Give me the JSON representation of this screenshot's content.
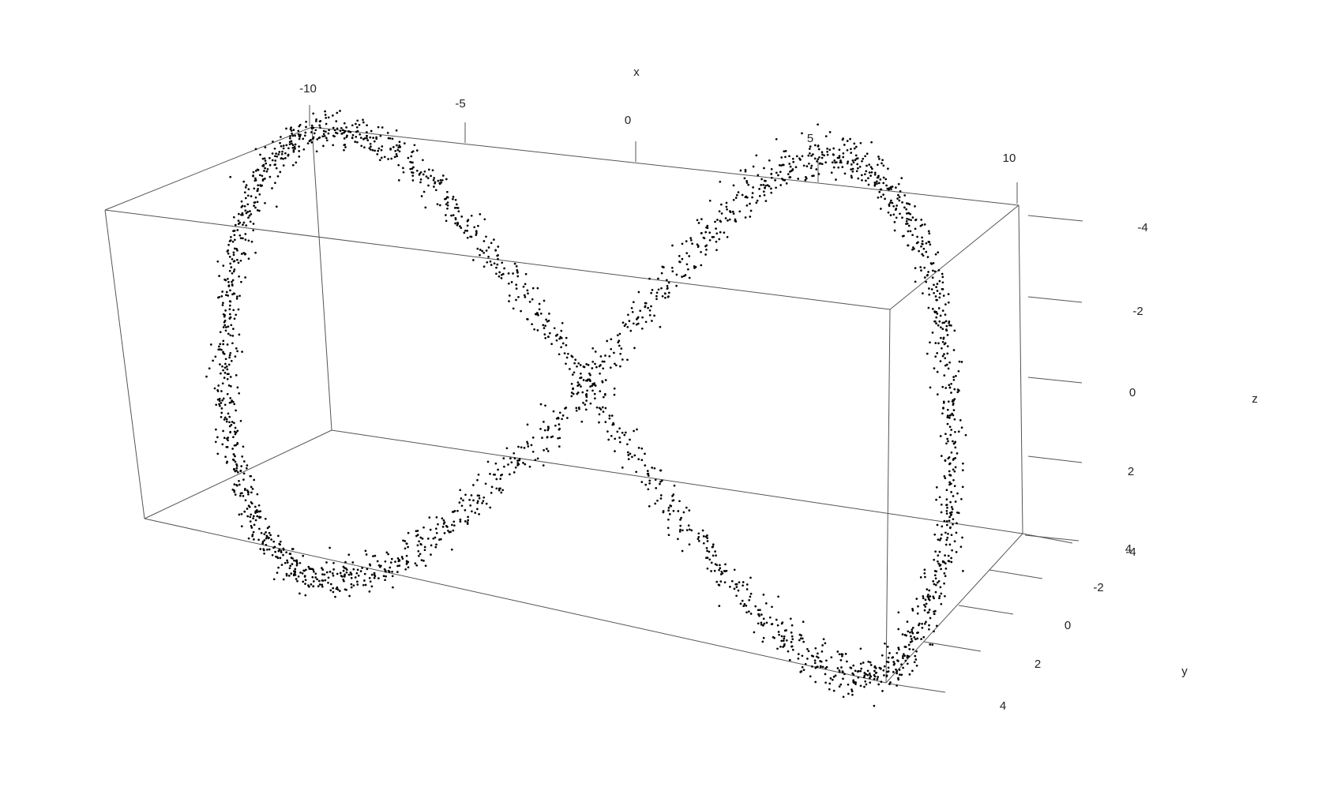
{
  "chart_data": {
    "type": "scatter",
    "projection": "3d",
    "title": "",
    "xlabel": "x",
    "ylabel": "y",
    "zlabel": "z",
    "xlim": [
      -10,
      10
    ],
    "ylim": [
      -4,
      4
    ],
    "zlim": [
      -4,
      4
    ],
    "x_ticks": [
      "-10",
      "-5",
      "0",
      "5",
      "10"
    ],
    "y_ticks": [
      "-4",
      "-2",
      "0",
      "2",
      "4"
    ],
    "z_ticks": [
      "-4",
      "-2",
      "0",
      "2",
      "4"
    ],
    "grid": false,
    "legend": "none",
    "point_color": "#000000",
    "box_color": "#555555",
    "description_of_points": "figure-eight curve",
    "curve": {
      "x_amplitude": 10,
      "z_amplitude": 3.5,
      "y_amplitude": 2,
      "noise": 0.3,
      "n_points": 2600
    }
  }
}
